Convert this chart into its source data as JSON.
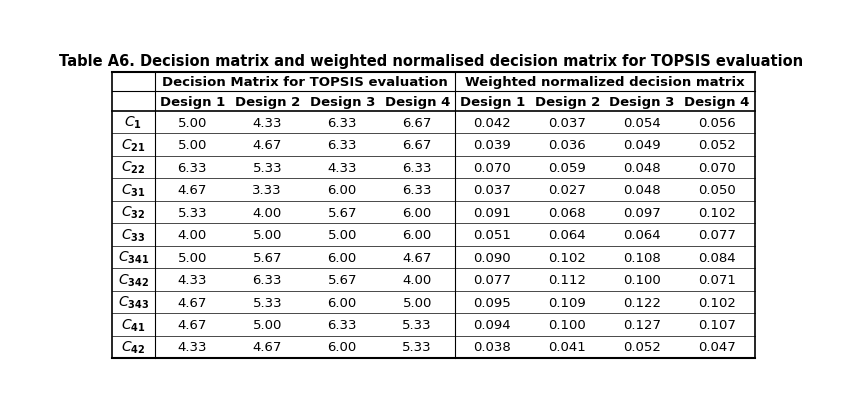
{
  "title": "Table A6. Decision matrix and weighted normalised decision matrix for TOPSIS evaluation",
  "row_labels": [
    "$\\mathbf{\\mathit{C}}_\\mathbf{1}$",
    "$\\mathbf{\\mathit{C}}_{\\mathbf{21}}$",
    "$\\mathbf{\\mathit{C}}_{\\mathbf{22}}$",
    "$\\mathbf{\\mathit{C}}_{\\mathbf{31}}$",
    "$\\mathbf{\\mathit{C}}_{\\mathbf{32}}$",
    "$\\mathbf{\\mathit{C}}_{\\mathbf{33}}$",
    "$\\mathbf{\\mathit{C}}_{\\mathbf{341}}$",
    "$\\mathbf{\\mathit{C}}_{\\mathbf{342}}$",
    "$\\mathbf{\\mathit{C}}_{\\mathbf{343}}$",
    "$\\mathbf{\\mathit{C}}_{\\mathbf{41}}$",
    "$\\mathbf{\\mathit{C}}_{\\mathbf{42}}$"
  ],
  "col_group1_header": "Decision Matrix for TOPSIS evaluation",
  "col_group2_header": "Weighted normalized decision matrix",
  "sub_headers": [
    "Design 1",
    "Design 2",
    "Design 3",
    "Design 4",
    "Design 1",
    "Design 2",
    "Design 3",
    "Design 4"
  ],
  "decision_matrix": [
    [
      "5.00",
      "4.33",
      "6.33",
      "6.67"
    ],
    [
      "5.00",
      "4.67",
      "6.33",
      "6.67"
    ],
    [
      "6.33",
      "5.33",
      "4.33",
      "6.33"
    ],
    [
      "4.67",
      "3.33",
      "6.00",
      "6.33"
    ],
    [
      "5.33",
      "4.00",
      "5.67",
      "6.00"
    ],
    [
      "4.00",
      "5.00",
      "5.00",
      "6.00"
    ],
    [
      "5.00",
      "5.67",
      "6.00",
      "4.67"
    ],
    [
      "4.33",
      "6.33",
      "5.67",
      "4.00"
    ],
    [
      "4.67",
      "5.33",
      "6.00",
      "5.00"
    ],
    [
      "4.67",
      "5.00",
      "6.33",
      "5.33"
    ],
    [
      "4.33",
      "4.67",
      "6.00",
      "5.33"
    ]
  ],
  "weighted_matrix": [
    [
      "0.042",
      "0.037",
      "0.054",
      "0.056"
    ],
    [
      "0.039",
      "0.036",
      "0.049",
      "0.052"
    ],
    [
      "0.070",
      "0.059",
      "0.048",
      "0.070"
    ],
    [
      "0.037",
      "0.027",
      "0.048",
      "0.050"
    ],
    [
      "0.091",
      "0.068",
      "0.097",
      "0.102"
    ],
    [
      "0.051",
      "0.064",
      "0.064",
      "0.077"
    ],
    [
      "0.090",
      "0.102",
      "0.108",
      "0.084"
    ],
    [
      "0.077",
      "0.112",
      "0.100",
      "0.071"
    ],
    [
      "0.095",
      "0.109",
      "0.122",
      "0.102"
    ],
    [
      "0.094",
      "0.100",
      "0.127",
      "0.107"
    ],
    [
      "0.038",
      "0.041",
      "0.052",
      "0.047"
    ]
  ],
  "bg_color": "#ffffff",
  "text_color": "#000000",
  "line_color": "#000000",
  "title_fontsize": 10.5,
  "header_fontsize": 9.5,
  "cell_fontsize": 9.5,
  "label_fontsize": 10
}
